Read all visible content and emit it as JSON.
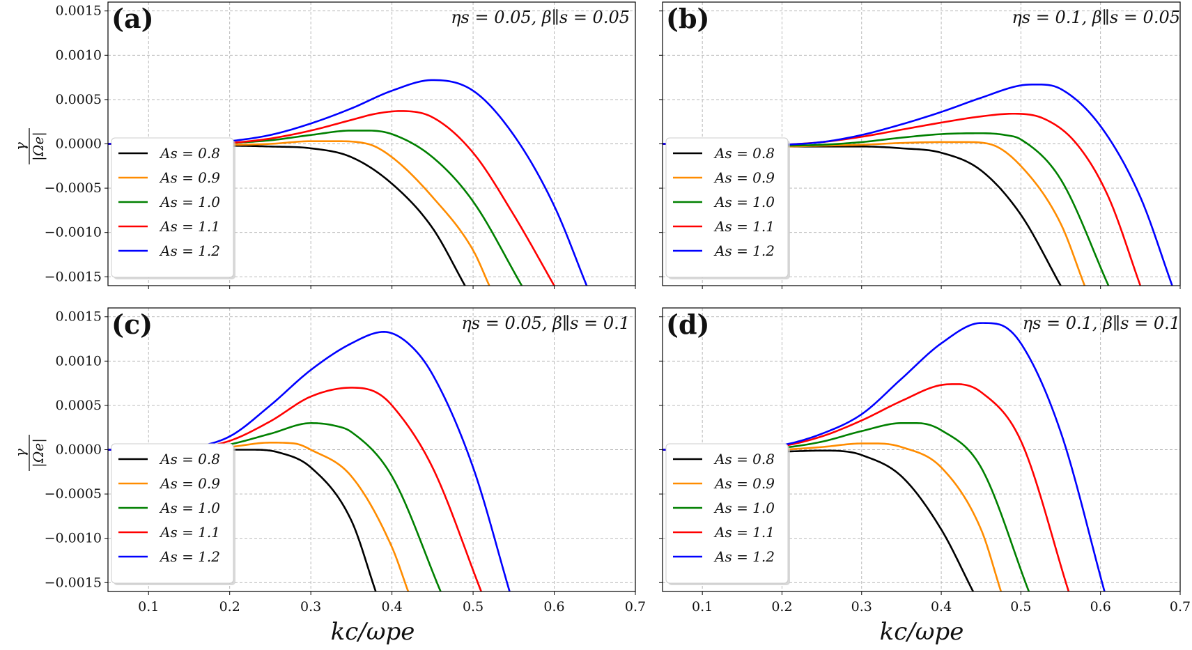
{
  "figure": {
    "x_axis_label": "kc/ωpe",
    "y_axis_label_num": "γ",
    "y_axis_label_den": "|Ωe|"
  },
  "chart_data": [
    {
      "type": "line",
      "panel_label": "(a)",
      "params": "ηs = 0.05,  β∥s = 0.05",
      "xlim": [
        0.05,
        0.7
      ],
      "ylim": [
        -0.0016,
        0.0016
      ],
      "xticks": [
        "0.1",
        "0.2",
        "0.3",
        "0.4",
        "0.5",
        "0.6",
        "0.7"
      ],
      "yticks": [
        "0.0015",
        "0.0010",
        "0.0005",
        "0.0000",
        "−0.0005",
        "−0.0010",
        "−0.0015"
      ],
      "grid": true,
      "legend_position": "lower-left",
      "series": [
        {
          "name": "As = 0.8",
          "color": "#000000",
          "x": [
            0.05,
            0.1,
            0.15,
            0.2,
            0.25,
            0.3,
            0.35,
            0.4,
            0.45,
            0.49
          ],
          "y": [
            0.0,
            0.0,
            -1e-05,
            -2e-05,
            -3e-05,
            -5e-05,
            -0.00015,
            -0.00045,
            -0.00095,
            -0.0016
          ]
        },
        {
          "name": "As = 0.9",
          "color": "#ff8c00",
          "x": [
            0.05,
            0.1,
            0.15,
            0.2,
            0.25,
            0.3,
            0.33,
            0.37,
            0.4,
            0.45,
            0.5,
            0.52
          ],
          "y": [
            0.0,
            0.0,
            -1e-05,
            -1e-05,
            0.0,
            3e-05,
            3e-05,
            0.0,
            -0.00015,
            -0.0006,
            -0.0012,
            -0.0016
          ]
        },
        {
          "name": "As = 1.0",
          "color": "#008000",
          "x": [
            0.05,
            0.1,
            0.15,
            0.2,
            0.25,
            0.3,
            0.35,
            0.37,
            0.4,
            0.45,
            0.5,
            0.56
          ],
          "y": [
            0.0,
            0.0,
            -1e-05,
            1e-05,
            4e-05,
            0.0001,
            0.00015,
            0.00015,
            0.00011,
            -0.00015,
            -0.00065,
            -0.0016
          ]
        },
        {
          "name": "As = 1.1",
          "color": "#ff0000",
          "x": [
            0.05,
            0.1,
            0.15,
            0.2,
            0.25,
            0.3,
            0.35,
            0.38,
            0.41,
            0.45,
            0.5,
            0.55,
            0.6
          ],
          "y": [
            0.0,
            0.0,
            -1e-05,
            1e-05,
            6e-05,
            0.00015,
            0.00027,
            0.00034,
            0.00037,
            0.0003,
            -0.0001,
            -0.0008,
            -0.0016
          ]
        },
        {
          "name": "As = 1.2",
          "color": "#0000ff",
          "x": [
            0.05,
            0.1,
            0.15,
            0.2,
            0.25,
            0.3,
            0.35,
            0.4,
            0.45,
            0.5,
            0.55,
            0.6,
            0.64
          ],
          "y": [
            0.0,
            0.0,
            -1e-05,
            3e-05,
            0.0001,
            0.00023,
            0.0004,
            0.0006,
            0.00072,
            0.0006,
            0.0001,
            -0.0007,
            -0.0016
          ]
        }
      ]
    },
    {
      "type": "line",
      "panel_label": "(b)",
      "params": "ηs = 0.1,  β∥s = 0.05",
      "xlim": [
        0.05,
        0.7
      ],
      "ylim": [
        -0.0016,
        0.0016
      ],
      "xticks": [
        "0.1",
        "0.2",
        "0.3",
        "0.4",
        "0.5",
        "0.6",
        "0.7"
      ],
      "yticks": [
        "0.0015",
        "0.0010",
        "0.0005",
        "0.0000",
        "−0.0005",
        "−0.0010",
        "−0.0015"
      ],
      "grid": true,
      "legend_position": "lower-left",
      "series": [
        {
          "name": "As = 0.8",
          "color": "#000000",
          "x": [
            0.05,
            0.1,
            0.15,
            0.2,
            0.25,
            0.3,
            0.35,
            0.4,
            0.45,
            0.5,
            0.55
          ],
          "y": [
            0.0,
            -1e-05,
            -2e-05,
            -3e-05,
            -3e-05,
            -3e-05,
            -5e-05,
            -0.0001,
            -0.0003,
            -0.0008,
            -0.0016
          ]
        },
        {
          "name": "As = 0.9",
          "color": "#ff8c00",
          "x": [
            0.05,
            0.1,
            0.15,
            0.2,
            0.25,
            0.3,
            0.35,
            0.4,
            0.43,
            0.46,
            0.5,
            0.55,
            0.58
          ],
          "y": [
            0.0,
            -1e-05,
            -2e-05,
            -3e-05,
            -2e-05,
            -1e-05,
            1e-05,
            2e-05,
            2e-05,
            0.0,
            -0.00025,
            -0.0009,
            -0.0016
          ]
        },
        {
          "name": "As = 1.0",
          "color": "#008000",
          "x": [
            0.05,
            0.1,
            0.15,
            0.2,
            0.25,
            0.3,
            0.35,
            0.4,
            0.45,
            0.48,
            0.5,
            0.55,
            0.61
          ],
          "y": [
            0.0,
            -1e-05,
            -2e-05,
            -2e-05,
            -1e-05,
            2e-05,
            7e-05,
            0.00011,
            0.00012,
            0.0001,
            5e-05,
            -0.0004,
            -0.0016
          ]
        },
        {
          "name": "As = 1.1",
          "color": "#ff0000",
          "x": [
            0.05,
            0.1,
            0.15,
            0.2,
            0.25,
            0.3,
            0.35,
            0.4,
            0.45,
            0.49,
            0.53,
            0.57,
            0.61,
            0.65
          ],
          "y": [
            0.0,
            -1e-05,
            -2e-05,
            -1e-05,
            2e-05,
            8e-05,
            0.00016,
            0.00024,
            0.00031,
            0.00034,
            0.00028,
            0.0,
            -0.0006,
            -0.0016
          ]
        },
        {
          "name": "As = 1.2",
          "color": "#0000ff",
          "x": [
            0.05,
            0.1,
            0.15,
            0.2,
            0.25,
            0.3,
            0.35,
            0.4,
            0.45,
            0.5,
            0.52,
            0.55,
            0.6,
            0.65,
            0.69
          ],
          "y": [
            0.0,
            -1e-05,
            -2e-05,
            -1e-05,
            2e-05,
            0.0001,
            0.00022,
            0.00036,
            0.00052,
            0.00066,
            0.00067,
            0.00062,
            0.0002,
            -0.0006,
            -0.0016
          ]
        }
      ]
    },
    {
      "type": "line",
      "panel_label": "(c)",
      "params": "ηs = 0.05,  β∥s = 0.1",
      "xlim": [
        0.05,
        0.7
      ],
      "ylim": [
        -0.0016,
        0.0016
      ],
      "xticks": [
        "0.1",
        "0.2",
        "0.3",
        "0.4",
        "0.5",
        "0.6",
        "0.7"
      ],
      "yticks": [
        "0.0015",
        "0.0010",
        "0.0005",
        "0.0000",
        "−0.0005",
        "−0.0010",
        "−0.0015"
      ],
      "grid": true,
      "legend_position": "lower-left",
      "series": [
        {
          "name": "As = 0.8",
          "color": "#000000",
          "x": [
            0.05,
            0.1,
            0.15,
            0.2,
            0.23,
            0.26,
            0.3,
            0.35,
            0.38
          ],
          "y": [
            0.0,
            -1e-05,
            -1e-05,
            0.0,
            0.0,
            -3e-05,
            -0.0002,
            -0.0008,
            -0.0016
          ]
        },
        {
          "name": "As = 0.9",
          "color": "#ff8c00",
          "x": [
            0.05,
            0.1,
            0.15,
            0.2,
            0.25,
            0.28,
            0.3,
            0.35,
            0.4,
            0.42
          ],
          "y": [
            0.0,
            -1e-05,
            -1e-05,
            3e-05,
            8e-05,
            7e-05,
            0.0,
            -0.0003,
            -0.0011,
            -0.0016
          ]
        },
        {
          "name": "As = 1.0",
          "color": "#008000",
          "x": [
            0.05,
            0.1,
            0.15,
            0.2,
            0.25,
            0.3,
            0.33,
            0.35,
            0.4,
            0.46
          ],
          "y": [
            0.0,
            -1e-05,
            0.0,
            6e-05,
            0.00018,
            0.0003,
            0.00027,
            0.0002,
            -0.0003,
            -0.0016
          ]
        },
        {
          "name": "As = 1.1",
          "color": "#ff0000",
          "x": [
            0.05,
            0.1,
            0.15,
            0.2,
            0.25,
            0.3,
            0.35,
            0.38,
            0.4,
            0.45,
            0.51
          ],
          "y": [
            0.0,
            -1e-05,
            1e-05,
            0.0001,
            0.00032,
            0.0006,
            0.0007,
            0.00065,
            0.0005,
            -0.0002,
            -0.0016
          ]
        },
        {
          "name": "As = 1.2",
          "color": "#0000ff",
          "x": [
            0.05,
            0.1,
            0.15,
            0.2,
            0.25,
            0.3,
            0.35,
            0.39,
            0.42,
            0.45,
            0.5,
            0.545
          ],
          "y": [
            0.0,
            -1e-05,
            2e-05,
            0.00015,
            0.0005,
            0.0009,
            0.0012,
            0.00133,
            0.0012,
            0.00085,
            -0.0002,
            -0.0016
          ]
        }
      ]
    },
    {
      "type": "line",
      "panel_label": "(d)",
      "params": "ηs = 0.1,  β∥s = 0.1",
      "xlim": [
        0.05,
        0.7
      ],
      "ylim": [
        -0.0016,
        0.0016
      ],
      "xticks": [
        "0.1",
        "0.2",
        "0.3",
        "0.4",
        "0.5",
        "0.6",
        "0.7"
      ],
      "yticks": [
        "0.0015",
        "0.0010",
        "0.0005",
        "0.0000",
        "−0.0005",
        "−0.0010",
        "−0.0015"
      ],
      "grid": true,
      "legend_position": "lower-left",
      "series": [
        {
          "name": "As = 0.8",
          "color": "#000000",
          "x": [
            0.05,
            0.1,
            0.15,
            0.2,
            0.25,
            0.28,
            0.3,
            0.35,
            0.4,
            0.44
          ],
          "y": [
            0.0,
            -1e-05,
            -2e-05,
            -2e-05,
            -1e-05,
            -2e-05,
            -6e-05,
            -0.0003,
            -0.0009,
            -0.0016
          ]
        },
        {
          "name": "As = 0.9",
          "color": "#ff8c00",
          "x": [
            0.05,
            0.1,
            0.15,
            0.2,
            0.25,
            0.3,
            0.32,
            0.35,
            0.4,
            0.45,
            0.475
          ],
          "y": [
            0.0,
            -1e-05,
            -1e-05,
            0.0,
            3e-05,
            7e-05,
            7e-05,
            3e-05,
            -0.0002,
            -0.0009,
            -0.0016
          ]
        },
        {
          "name": "As = 1.0",
          "color": "#008000",
          "x": [
            0.05,
            0.1,
            0.15,
            0.2,
            0.25,
            0.3,
            0.35,
            0.37,
            0.4,
            0.45,
            0.51
          ],
          "y": [
            0.0,
            -1e-05,
            -1e-05,
            2e-05,
            9e-05,
            0.00021,
            0.0003,
            0.0003,
            0.00022,
            -0.0002,
            -0.0016
          ]
        },
        {
          "name": "As = 1.1",
          "color": "#ff0000",
          "x": [
            0.05,
            0.1,
            0.15,
            0.2,
            0.25,
            0.3,
            0.35,
            0.4,
            0.42,
            0.45,
            0.5,
            0.56
          ],
          "y": [
            0.0,
            -1e-05,
            0.0,
            4e-05,
            0.00015,
            0.00033,
            0.00055,
            0.00073,
            0.00074,
            0.00065,
            0.0001,
            -0.0016
          ]
        },
        {
          "name": "As = 1.2",
          "color": "#0000ff",
          "x": [
            0.05,
            0.1,
            0.15,
            0.2,
            0.25,
            0.3,
            0.35,
            0.4,
            0.45,
            0.47,
            0.5,
            0.55,
            0.605
          ],
          "y": [
            0.0,
            -1e-05,
            0.0,
            5e-05,
            0.00018,
            0.0004,
            0.0008,
            0.0012,
            0.00143,
            0.00142,
            0.0012,
            0.0002,
            -0.0016
          ]
        }
      ]
    }
  ]
}
